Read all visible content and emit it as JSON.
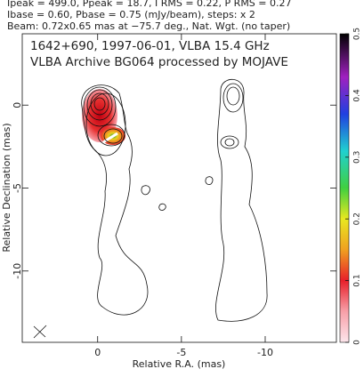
{
  "chart_data": {
    "type": "contour",
    "header": [
      "Ipeak = 499.0, Ppeak = 18.7, I RMS = 0.22, P RMS = 0.27",
      "Ibase = 0.60, Pbase = 0.75 (mJy/beam), steps: x 2",
      "Beam: 0.72x0.65 mas at −75.7 deg., Nat. Wgt. (no taper)"
    ],
    "title": "1642+690, 1997-06-01, VLBA 15.4 GHz",
    "subtitle": "VLBA Archive BG064 processed by MOJAVE",
    "x_label": "Relative R.A. (mas)",
    "y_label": "Relative Declination (mas)",
    "xlim": [
      4.5,
      -14.25
    ],
    "xticks": [
      0,
      -5,
      -10
    ],
    "ylim": [
      -14.3,
      4.3
    ],
    "yticks": [
      0,
      -5,
      -10
    ],
    "colorbar_lim": [
      0,
      0.5
    ],
    "colorbar_ticks": [
      0,
      0.1,
      0.2,
      0.3,
      0.4,
      0.5
    ]
  }
}
